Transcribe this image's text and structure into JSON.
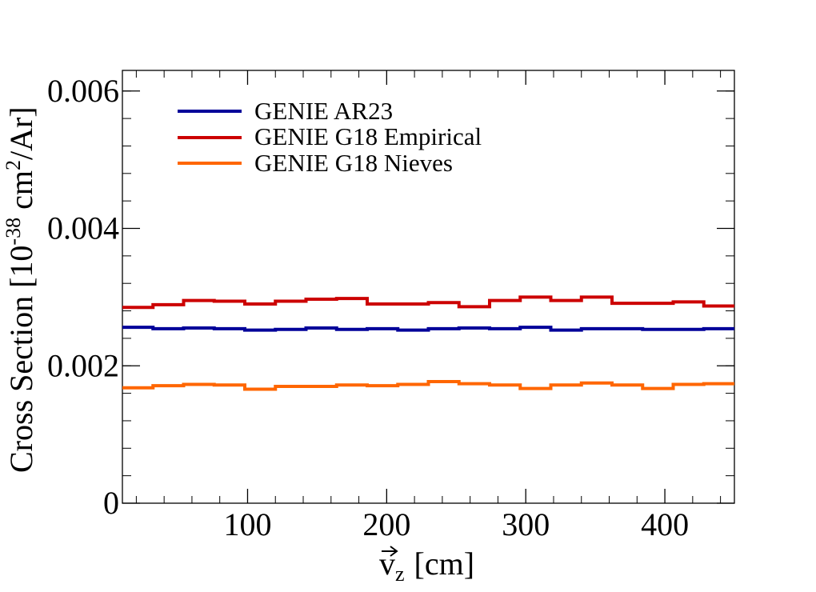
{
  "chart_data": {
    "type": "line",
    "step": true,
    "title": "",
    "xlabel": "v",
    "xlabel_sub": "z",
    "xlabel_unit": "[cm]",
    "ylabel": "Cross Section [10",
    "ylabel_exp": "-38",
    "ylabel_mid": " cm",
    "ylabel_exp2": "2",
    "ylabel_end": "/Ar]",
    "xlim": [
      10,
      450
    ],
    "ylim": [
      0,
      0.0063
    ],
    "xticks": [
      100,
      200,
      300,
      400
    ],
    "xtick_labels": [
      "100",
      "200",
      "300",
      "400"
    ],
    "yticks": [
      0,
      0.002,
      0.004,
      0.006
    ],
    "ytick_labels": [
      "0",
      "0.002",
      "0.004",
      "0.006"
    ],
    "bin_edges": [
      10,
      32,
      54,
      76,
      98,
      120,
      142,
      164,
      186,
      208,
      230,
      252,
      274,
      296,
      318,
      340,
      362,
      384,
      406,
      428,
      450
    ],
    "legend_position": "top-left",
    "series": [
      {
        "name": "GENIE AR23",
        "color": "#000099",
        "values": [
          0.00256,
          0.00254,
          0.00255,
          0.00254,
          0.00252,
          0.00253,
          0.00255,
          0.00253,
          0.00254,
          0.00252,
          0.00254,
          0.00255,
          0.00254,
          0.00256,
          0.00252,
          0.00254,
          0.00254,
          0.00253,
          0.00253,
          0.00254
        ]
      },
      {
        "name": "GENIE G18 Empirical",
        "color": "#cc0000",
        "values": [
          0.00285,
          0.00289,
          0.00295,
          0.00294,
          0.0029,
          0.00294,
          0.00297,
          0.00298,
          0.0029,
          0.0029,
          0.00292,
          0.00286,
          0.00295,
          0.003,
          0.00295,
          0.003,
          0.00291,
          0.00291,
          0.00293,
          0.00287
        ]
      },
      {
        "name": "GENIE G18 Nieves",
        "color": "#ff6600",
        "values": [
          0.00168,
          0.00171,
          0.00173,
          0.00172,
          0.00166,
          0.0017,
          0.0017,
          0.00172,
          0.00171,
          0.00173,
          0.00177,
          0.00174,
          0.00172,
          0.00167,
          0.00172,
          0.00175,
          0.00172,
          0.00167,
          0.00173,
          0.00174
        ]
      }
    ]
  }
}
